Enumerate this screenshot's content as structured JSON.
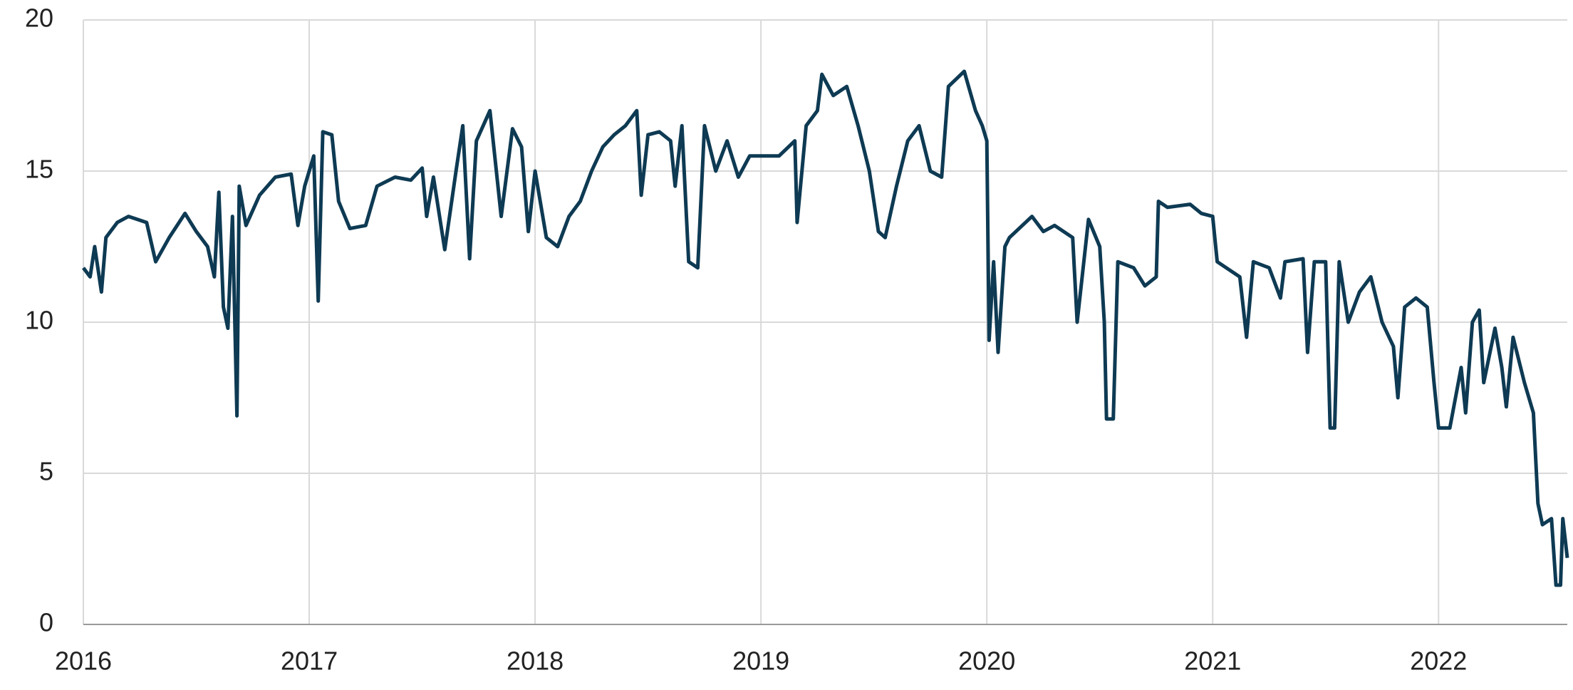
{
  "chart_data": {
    "type": "line",
    "x": [
      2016.0,
      2016.03,
      2016.05,
      2016.08,
      2016.1,
      2016.15,
      2016.2,
      2016.28,
      2016.32,
      2016.38,
      2016.45,
      2016.5,
      2016.55,
      2016.58,
      2016.6,
      2016.62,
      2016.64,
      2016.66,
      2016.68,
      2016.69,
      2016.72,
      2016.78,
      2016.85,
      2016.92,
      2016.95,
      2016.98,
      2017.02,
      2017.04,
      2017.06,
      2017.1,
      2017.13,
      2017.18,
      2017.25,
      2017.3,
      2017.38,
      2017.45,
      2017.5,
      2017.52,
      2017.55,
      2017.6,
      2017.65,
      2017.68,
      2017.71,
      2017.74,
      2017.8,
      2017.85,
      2017.9,
      2017.94,
      2017.97,
      2018.0,
      2018.05,
      2018.1,
      2018.15,
      2018.2,
      2018.25,
      2018.3,
      2018.35,
      2018.4,
      2018.45,
      2018.47,
      2018.5,
      2018.55,
      2018.6,
      2018.62,
      2018.65,
      2018.68,
      2018.72,
      2018.75,
      2018.8,
      2018.85,
      2018.9,
      2018.95,
      2019.0,
      2019.08,
      2019.15,
      2019.16,
      2019.2,
      2019.25,
      2019.27,
      2019.32,
      2019.38,
      2019.43,
      2019.48,
      2019.52,
      2019.55,
      2019.6,
      2019.65,
      2019.7,
      2019.75,
      2019.8,
      2019.83,
      2019.9,
      2019.95,
      2019.98,
      2020.0,
      2020.01,
      2020.03,
      2020.05,
      2020.08,
      2020.1,
      2020.2,
      2020.25,
      2020.3,
      2020.38,
      2020.4,
      2020.45,
      2020.5,
      2020.52,
      2020.53,
      2020.56,
      2020.58,
      2020.65,
      2020.7,
      2020.75,
      2020.76,
      2020.8,
      2020.9,
      2020.95,
      2021.0,
      2021.02,
      2021.08,
      2021.12,
      2021.15,
      2021.18,
      2021.25,
      2021.3,
      2021.32,
      2021.4,
      2021.42,
      2021.45,
      2021.5,
      2021.52,
      2021.54,
      2021.56,
      2021.6,
      2021.65,
      2021.7,
      2021.75,
      2021.8,
      2021.82,
      2021.85,
      2021.9,
      2021.95,
      2021.98,
      2022.0,
      2022.05,
      2022.1,
      2022.12,
      2022.15,
      2022.18,
      2022.2,
      2022.25,
      2022.28,
      2022.3,
      2022.33,
      2022.38,
      2022.42,
      2022.44,
      2022.46,
      2022.5,
      2022.52,
      2022.54,
      2022.55,
      2022.57
    ],
    "series": [
      {
        "color": "#0e3a53",
        "values": [
          11.8,
          11.5,
          12.5,
          11.0,
          12.8,
          13.3,
          13.5,
          13.3,
          12.0,
          12.8,
          13.6,
          13.0,
          12.5,
          11.5,
          14.3,
          10.5,
          9.8,
          13.5,
          6.9,
          14.5,
          13.2,
          14.2,
          14.8,
          14.9,
          13.2,
          14.5,
          15.5,
          10.7,
          16.3,
          16.2,
          14.0,
          13.1,
          13.2,
          14.5,
          14.8,
          14.7,
          15.1,
          13.5,
          14.8,
          12.4,
          15.0,
          16.5,
          12.1,
          16.0,
          17.0,
          13.5,
          16.4,
          15.8,
          13.0,
          15.0,
          12.8,
          12.5,
          13.5,
          14.0,
          15.0,
          15.8,
          16.2,
          16.5,
          17.0,
          14.2,
          16.2,
          16.3,
          16.0,
          14.5,
          16.5,
          12.0,
          11.8,
          16.5,
          15.0,
          16.0,
          14.8,
          15.5,
          15.5,
          15.5,
          16.0,
          13.3,
          16.5,
          17.0,
          18.2,
          17.5,
          17.8,
          16.5,
          15.0,
          13.0,
          12.8,
          14.5,
          16.0,
          16.5,
          15.0,
          14.8,
          17.8,
          18.3,
          17.0,
          16.5,
          16.0,
          9.4,
          12.0,
          9.0,
          12.5,
          12.8,
          13.5,
          13.0,
          13.2,
          12.8,
          10.0,
          13.4,
          12.5,
          10.0,
          6.8,
          6.8,
          12.0,
          11.8,
          11.2,
          11.5,
          14.0,
          13.8,
          13.9,
          13.6,
          13.5,
          12.0,
          11.7,
          11.5,
          9.5,
          12.0,
          11.8,
          10.8,
          12.0,
          12.1,
          9.0,
          12.0,
          12.0,
          6.5,
          6.5,
          12.0,
          10.0,
          11.0,
          11.5,
          10.0,
          9.2,
          7.5,
          10.5,
          10.8,
          10.5,
          8.0,
          6.5,
          6.5,
          8.5,
          7.0,
          10.0,
          10.4,
          8.0,
          9.8,
          8.5,
          7.2,
          9.5,
          8.0,
          7.0,
          4.0,
          3.3,
          3.5,
          1.3,
          1.3,
          3.5,
          2.2
        ]
      }
    ],
    "xlim": [
      2016,
      2022.57
    ],
    "xticks": [
      2016,
      2017,
      2018,
      2019,
      2020,
      2021,
      2022
    ],
    "ylim": [
      0,
      20
    ],
    "yticks": [
      0,
      5,
      10,
      15,
      20
    ],
    "grid": true
  }
}
